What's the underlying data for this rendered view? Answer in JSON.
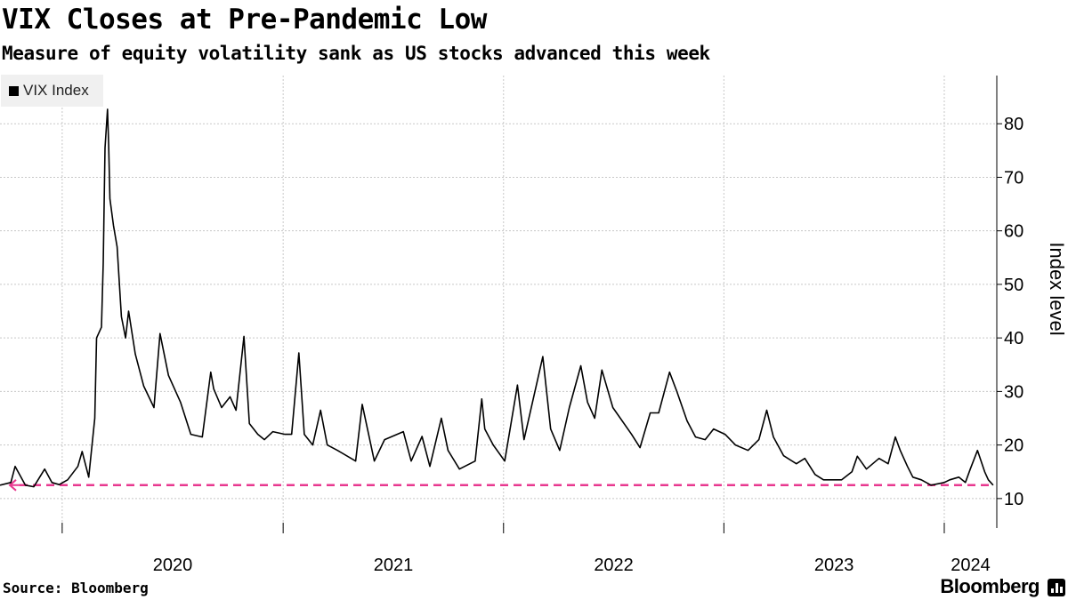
{
  "header": {
    "title": "VIX Closes at Pre-Pandemic Low",
    "subtitle": "Measure of equity volatility sank as US stocks advanced this week"
  },
  "footer": {
    "source": "Source: Bloomberg",
    "brand": "Bloomberg"
  },
  "colors": {
    "line": "#000000",
    "reference": "#e8388f",
    "grid": "#c8c8c8"
  },
  "chart_data": {
    "type": "line",
    "title": "VIX Closes at Pre-Pandemic Low",
    "subtitle": "Measure of equity volatility sank as US stocks advanced this week",
    "ylabel": "Index level",
    "xlabel": "",
    "ylim": [
      4.5,
      89
    ],
    "y_ticks": [
      10,
      20,
      30,
      40,
      50,
      60,
      70,
      80
    ],
    "xlim": [
      "2019-09-20",
      "2024-03-28"
    ],
    "x_ticks": [
      "2020",
      "2021",
      "2022",
      "2023",
      "2024"
    ],
    "grid": true,
    "legend_position": "top-left",
    "reference_line": {
      "value": 12.5,
      "start": "2019-09-20",
      "end": "2024-03-22",
      "style": "dashed"
    },
    "series": [
      {
        "name": "VIX Index",
        "x": [
          "2019-09-20",
          "2019-10-08",
          "2019-10-15",
          "2019-11-01",
          "2019-11-15",
          "2019-12-03",
          "2019-12-15",
          "2019-12-27",
          "2020-01-10",
          "2020-01-27",
          "2020-02-03",
          "2020-02-14",
          "2020-02-24",
          "2020-02-27",
          "2020-03-06",
          "2020-03-09",
          "2020-03-12",
          "2020-03-16",
          "2020-03-18",
          "2020-03-20",
          "2020-03-26",
          "2020-04-01",
          "2020-04-08",
          "2020-04-15",
          "2020-04-20",
          "2020-05-01",
          "2020-05-15",
          "2020-06-01",
          "2020-06-11",
          "2020-06-25",
          "2020-07-15",
          "2020-08-01",
          "2020-08-20",
          "2020-09-03",
          "2020-09-08",
          "2020-09-21",
          "2020-10-05",
          "2020-10-15",
          "2020-10-28",
          "2020-11-06",
          "2020-11-20",
          "2020-12-01",
          "2020-12-15",
          "2021-01-04",
          "2021-01-15",
          "2021-01-27",
          "2021-02-05",
          "2021-02-19",
          "2021-03-04",
          "2021-03-15",
          "2021-04-01",
          "2021-05-01",
          "2021-05-12",
          "2021-06-01",
          "2021-06-18",
          "2021-07-19",
          "2021-08-01",
          "2021-08-19",
          "2021-09-01",
          "2021-09-20",
          "2021-10-01",
          "2021-10-20",
          "2021-11-15",
          "2021-11-26",
          "2021-12-01",
          "2021-12-15",
          "2022-01-03",
          "2022-01-24",
          "2022-02-04",
          "2022-02-24",
          "2022-03-07",
          "2022-03-20",
          "2022-04-04",
          "2022-04-20",
          "2022-05-09",
          "2022-05-20",
          "2022-06-01",
          "2022-06-13",
          "2022-07-01",
          "2022-08-01",
          "2022-08-15",
          "2022-09-01",
          "2022-09-15",
          "2022-10-03",
          "2022-10-15",
          "2022-11-01",
          "2022-11-15",
          "2022-12-01",
          "2022-12-15",
          "2023-01-03",
          "2023-01-20",
          "2023-02-10",
          "2023-02-28",
          "2023-03-13",
          "2023-03-24",
          "2023-04-10",
          "2023-05-01",
          "2023-05-15",
          "2023-06-01",
          "2023-06-15",
          "2023-07-15",
          "2023-08-01",
          "2023-08-10",
          "2023-08-25",
          "2023-09-15",
          "2023-09-30",
          "2023-10-12",
          "2023-10-20",
          "2023-11-01",
          "2023-11-10",
          "2023-11-24",
          "2023-12-10",
          "2024-01-01",
          "2024-01-10",
          "2024-01-25",
          "2024-02-05",
          "2024-02-13",
          "2024-02-25",
          "2024-03-08",
          "2024-03-14",
          "2024-03-22"
        ],
        "values": [
          12.5,
          13.0,
          16.0,
          12.5,
          12.2,
          15.5,
          13.0,
          12.6,
          13.5,
          16.0,
          18.8,
          14.0,
          25.0,
          40.0,
          42.0,
          54.0,
          75.5,
          82.7,
          76.0,
          66.0,
          61.0,
          57.0,
          44.0,
          40.0,
          45.0,
          37.0,
          31.0,
          27.0,
          40.8,
          33.0,
          28.0,
          22.0,
          21.5,
          33.6,
          30.5,
          27.0,
          29.0,
          26.5,
          40.3,
          24.0,
          22.0,
          21.0,
          22.5,
          22.0,
          22.0,
          37.2,
          22.0,
          20.0,
          26.5,
          20.0,
          19.0,
          17.0,
          27.6,
          17.0,
          21.0,
          22.5,
          17.0,
          21.6,
          16.0,
          25.0,
          19.0,
          15.5,
          17.0,
          28.6,
          23.0,
          20.0,
          17.0,
          31.2,
          21.0,
          31.0,
          36.5,
          23.0,
          19.0,
          27.0,
          34.8,
          28.0,
          25.0,
          34.0,
          27.0,
          22.0,
          19.5,
          26.0,
          26.0,
          33.6,
          30.0,
          24.5,
          21.5,
          21.0,
          23.0,
          22.0,
          20.0,
          19.0,
          21.0,
          26.5,
          21.5,
          18.0,
          16.5,
          17.5,
          14.5,
          13.5,
          13.5,
          15.0,
          17.9,
          15.5,
          17.5,
          16.5,
          21.5,
          19.0,
          16.0,
          14.0,
          13.5,
          12.5,
          13.0,
          13.5,
          14.0,
          13.0,
          15.5,
          19.0,
          15.0,
          13.5,
          12.5
        ]
      }
    ]
  }
}
